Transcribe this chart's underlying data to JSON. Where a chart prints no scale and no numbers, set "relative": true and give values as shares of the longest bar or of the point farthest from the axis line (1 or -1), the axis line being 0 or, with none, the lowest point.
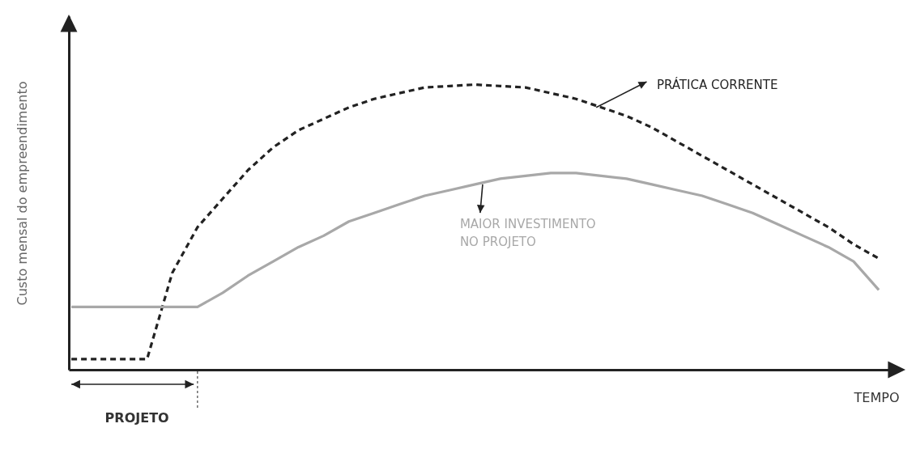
{
  "chart_data": {
    "type": "line",
    "relative": true,
    "xlabel": "TEMPO",
    "ylabel": "Custo mensal do empreendimento",
    "categories": [
      null,
      null,
      null,
      null,
      null,
      null,
      null,
      null,
      null,
      null,
      null,
      null,
      null,
      null,
      null,
      null,
      null,
      null,
      null,
      null,
      null,
      null,
      null,
      null,
      null,
      null,
      null,
      null,
      null,
      null,
      null,
      null,
      null
    ],
    "series": [
      {
        "name": "PRÁTICA CORRENTE",
        "color": "#222222",
        "line_style": "dashed",
        "values": [
          0.037,
          0.037,
          0.037,
          0.037,
          0.34,
          0.5,
          0.6,
          0.7,
          0.78,
          0.84,
          0.88,
          0.92,
          0.95,
          0.97,
          0.99,
          0.995,
          1,
          0.995,
          0.99,
          0.97,
          0.95,
          0.92,
          0.89,
          0.85,
          0.8,
          0.75,
          0.7,
          0.65,
          0.6,
          0.55,
          0.5,
          0.44,
          0.39
        ]
      },
      {
        "name": "MAIOR INVESTIMENTO NO PROJETO",
        "color": "#a8a8a8",
        "line_style": "solid",
        "values": [
          0.22,
          0.22,
          0.22,
          0.22,
          0.22,
          0.22,
          0.27,
          0.33,
          0.38,
          0.43,
          0.47,
          0.52,
          0.55,
          0.58,
          0.61,
          0.63,
          0.65,
          0.67,
          0.68,
          0.69,
          0.69,
          0.68,
          0.67,
          0.65,
          0.63,
          0.61,
          0.58,
          0.55,
          0.51,
          0.47,
          0.43,
          0.38,
          0.28
        ]
      }
    ],
    "annotations": [
      "PROJETO"
    ]
  }
}
